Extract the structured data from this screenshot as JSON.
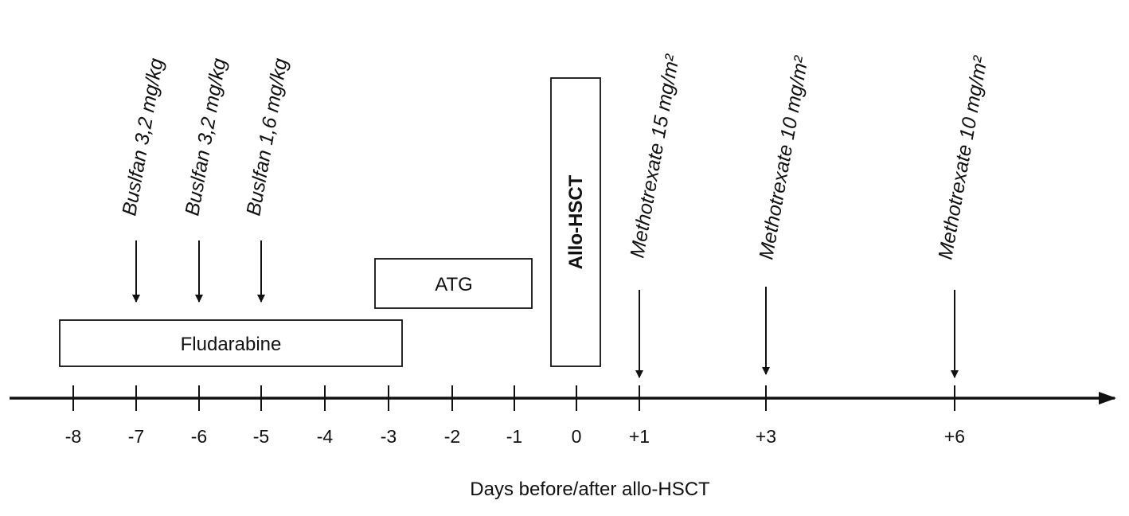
{
  "diagram": {
    "axis_label": "Days before/after allo-HSCT",
    "ticks": [
      "-8",
      "-7",
      "-6",
      "-5",
      "-4",
      "-3",
      "-2",
      "-1",
      "0",
      "+1",
      "+3",
      "+6"
    ],
    "boxes": {
      "fludarabine": "Fludarabine",
      "atg": "ATG",
      "allo": "Allo-HSCT"
    },
    "doses": [
      "Buslfan 3,2 mg/kg",
      "Buslfan 3,2 mg/kg",
      "Buslfan 1,6 mg/kg",
      "Methotrexate 15 mg/m²",
      "Methotrexate 10 mg/m²",
      "Methotrexate 10 mg/m²"
    ]
  }
}
